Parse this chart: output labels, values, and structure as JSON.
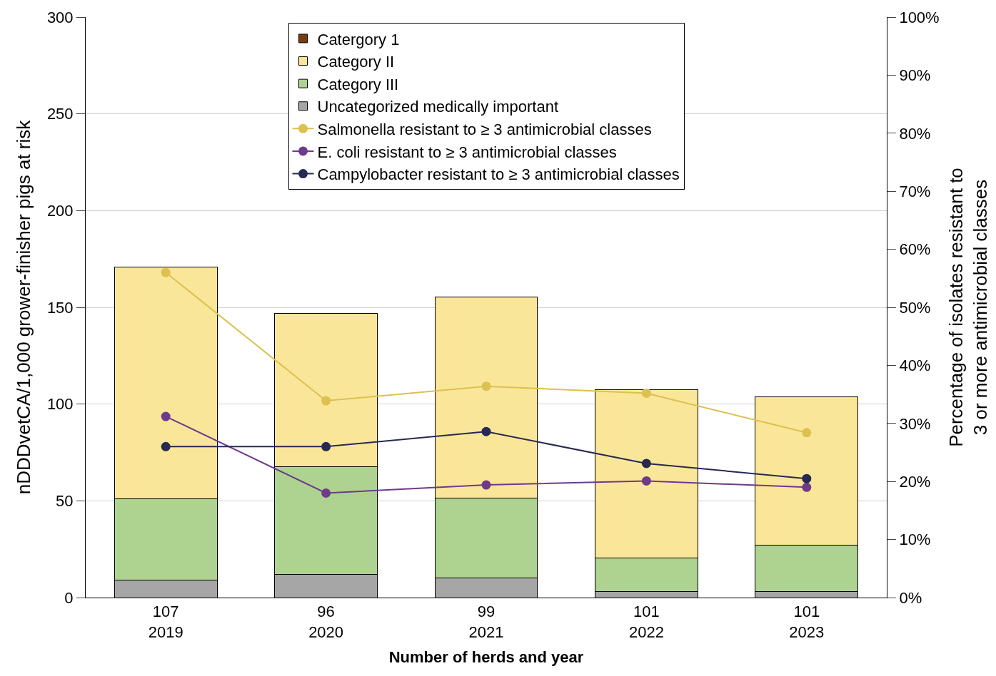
{
  "chart_data": {
    "type": "bar",
    "stacked": true,
    "xlabel": "Number of herds and year",
    "ylabel": "nDDDvetCA/1,000 grower-finisher pigs at risk",
    "y2label": "Percentage of isolates resistant to\n3 or more antimicrobial classes",
    "categories": [
      "107\n2019",
      "96\n2020",
      "99\n2021",
      "101\n2022",
      "101\n2023"
    ],
    "series": [
      {
        "name": "Uncategorized medically important",
        "color": "#a6a6a6",
        "values": [
          9,
          12,
          10,
          3,
          3
        ]
      },
      {
        "name": "Category III",
        "color": "#aed28f",
        "values": [
          42,
          55.5,
          41.5,
          17.6,
          24
        ]
      },
      {
        "name": "Category II",
        "color": "#fae699",
        "values": [
          120,
          79.5,
          104,
          86.7,
          76.6
        ]
      },
      {
        "name": "Catergory 1",
        "color": "#7a3b10",
        "values": [
          null,
          null,
          null,
          null,
          null
        ]
      },
      {
        "name": "Salmonella resistant to ≥ 3 antimicrobial classes",
        "type": "line",
        "axis": "y2",
        "color": "#dcc050",
        "marker": "circle",
        "values": [
          56.0,
          33.9,
          36.4,
          35.2,
          28.4
        ]
      },
      {
        "name": "E. coli resistant to ≥ 3 antimicrobial classes",
        "type": "line",
        "axis": "y2",
        "color": "#6e3a8c",
        "marker": "circle",
        "values": [
          31.2,
          18.0,
          19.4,
          20.1,
          19.0
        ]
      },
      {
        "name": "Campylobacter resistant to ≥ 3 antimicrobial classes",
        "type": "line",
        "axis": "y2",
        "color": "#262a50",
        "marker": "circle",
        "values": [
          26.0,
          26.0,
          28.6,
          23.1,
          20.5
        ]
      }
    ],
    "ylim": [
      0,
      300
    ],
    "yticks": [
      0,
      50,
      100,
      150,
      200,
      250,
      300
    ],
    "y2lim": [
      0,
      100
    ],
    "y2ticks": [
      {
        "value": 0,
        "label": "0%"
      },
      {
        "value": 10,
        "label": "10%"
      },
      {
        "value": 20,
        "label": "20%"
      },
      {
        "value": 30,
        "label": "30%"
      },
      {
        "value": 40,
        "label": "40%"
      },
      {
        "value": 50,
        "label": "50%"
      },
      {
        "value": 60,
        "label": "60%"
      },
      {
        "value": 70,
        "label": "70%"
      },
      {
        "value": 80,
        "label": "80%"
      },
      {
        "value": 90,
        "label": "90%"
      },
      {
        "value": 100,
        "label": "100%"
      }
    ],
    "grid": "y",
    "legend": "top"
  }
}
